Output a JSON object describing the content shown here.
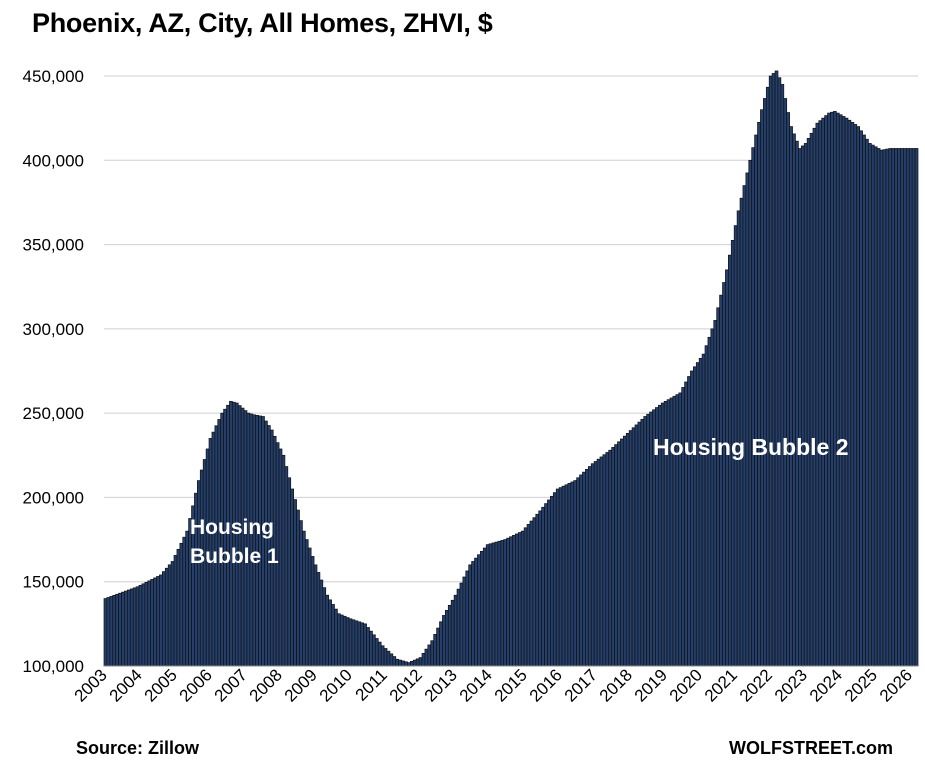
{
  "chart_data": {
    "type": "bar",
    "title": "Phoenix, AZ, City, All Homes, ZHVI, $",
    "ylim": [
      100000,
      450000
    ],
    "y_ticks": [
      100000,
      150000,
      200000,
      250000,
      300000,
      350000,
      400000,
      450000
    ],
    "y_tick_labels": [
      "100,000",
      "150,000",
      "200,000",
      "250,000",
      "300,000",
      "350,000",
      "400,000",
      "450,000"
    ],
    "x_tick_labels": [
      "2003",
      "2004",
      "2005",
      "2006",
      "2007",
      "2008",
      "2009",
      "2010",
      "2011",
      "2012",
      "2013",
      "2014",
      "2015",
      "2016",
      "2017",
      "2018",
      "2019",
      "2020",
      "2021",
      "2022",
      "2023",
      "2024",
      "2025",
      "2026"
    ],
    "grid": "horizontal",
    "bar_color": "#243f6b",
    "bar_edge_color": "#111111",
    "annotations": [
      "Housing Bubble 1",
      "Housing Bubble 2"
    ],
    "series": [
      {
        "frequency": "monthly",
        "start": "2003-01",
        "end": "2026-03",
        "anchors": [
          [
            "2003-01",
            140000
          ],
          [
            "2003-12",
            147000
          ],
          [
            "2004-08",
            154000
          ],
          [
            "2004-12",
            162000
          ],
          [
            "2005-05",
            180000
          ],
          [
            "2005-09",
            210000
          ],
          [
            "2006-01",
            235000
          ],
          [
            "2006-05",
            250000
          ],
          [
            "2006-08",
            257000
          ],
          [
            "2006-10",
            256000
          ],
          [
            "2007-02",
            250000
          ],
          [
            "2007-04",
            249000
          ],
          [
            "2007-07",
            248000
          ],
          [
            "2007-10",
            240000
          ],
          [
            "2008-02",
            225000
          ],
          [
            "2008-05",
            205000
          ],
          [
            "2008-09",
            180000
          ],
          [
            "2009-01",
            160000
          ],
          [
            "2009-05",
            142000
          ],
          [
            "2009-09",
            131000
          ],
          [
            "2010-01",
            128000
          ],
          [
            "2010-06",
            125000
          ],
          [
            "2010-12",
            112000
          ],
          [
            "2011-05",
            104000
          ],
          [
            "2011-09",
            102000
          ],
          [
            "2012-01",
            105000
          ],
          [
            "2012-05",
            115000
          ],
          [
            "2012-09",
            130000
          ],
          [
            "2013-01",
            142000
          ],
          [
            "2013-06",
            160000
          ],
          [
            "2013-12",
            172000
          ],
          [
            "2014-06",
            175000
          ],
          [
            "2014-12",
            180000
          ],
          [
            "2015-06",
            192000
          ],
          [
            "2015-12",
            205000
          ],
          [
            "2016-06",
            210000
          ],
          [
            "2016-12",
            220000
          ],
          [
            "2017-06",
            228000
          ],
          [
            "2017-12",
            238000
          ],
          [
            "2018-06",
            248000
          ],
          [
            "2018-12",
            256000
          ],
          [
            "2019-06",
            262000
          ],
          [
            "2019-10",
            275000
          ],
          [
            "2020-02",
            285000
          ],
          [
            "2020-06",
            305000
          ],
          [
            "2020-10",
            335000
          ],
          [
            "2021-02",
            370000
          ],
          [
            "2021-06",
            400000
          ],
          [
            "2021-10",
            430000
          ],
          [
            "2022-01",
            450000
          ],
          [
            "2022-03",
            453000
          ],
          [
            "2022-05",
            445000
          ],
          [
            "2022-08",
            420000
          ],
          [
            "2022-11",
            407000
          ],
          [
            "2023-01",
            410000
          ],
          [
            "2023-05",
            422000
          ],
          [
            "2023-09",
            428000
          ],
          [
            "2023-11",
            429000
          ],
          [
            "2024-03",
            425000
          ],
          [
            "2024-07",
            420000
          ],
          [
            "2024-11",
            410000
          ],
          [
            "2025-03",
            406000
          ],
          [
            "2025-06",
            407000
          ],
          [
            "2026-03",
            407000
          ]
        ]
      }
    ]
  },
  "annotation_1": {
    "line1": "Housing",
    "line2": "Bubble 1"
  },
  "annotation_2": {
    "text": "Housing Bubble 2"
  },
  "footer": {
    "source": "Source: Zillow",
    "brand": "WOLFSTREET.com"
  }
}
